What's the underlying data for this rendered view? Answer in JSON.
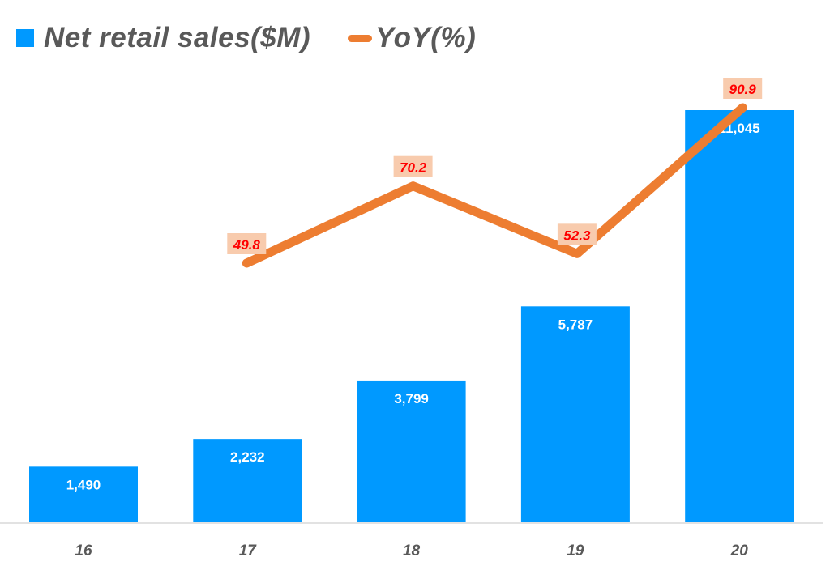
{
  "legend": {
    "bar_label": "Net retail sales($M)",
    "line_label": "YoY(%)"
  },
  "colors": {
    "bar": "#0099ff",
    "line": "#ed7d31",
    "yoy_label_bg": "#f8cbad",
    "yoy_label_text": "#ff0000",
    "axis_text": "#595959"
  },
  "chart_data": {
    "type": "bar",
    "title": "",
    "xlabel": "",
    "ylabel": "",
    "categories": [
      "16",
      "17",
      "18",
      "19",
      "20"
    ],
    "series": [
      {
        "name": "Net retail sales($M)",
        "type": "bar",
        "values": [
          1490,
          2232,
          3799,
          5787,
          11045
        ],
        "labels": [
          "1,490",
          "2,232",
          "3,799",
          "5,787",
          "11,045"
        ]
      },
      {
        "name": "YoY(%)",
        "type": "line",
        "values": [
          null,
          49.8,
          70.2,
          52.3,
          90.9
        ],
        "labels": [
          "",
          "49.8",
          "70.2",
          "52.3",
          "90.9"
        ]
      }
    ],
    "legend_position": "top-left",
    "grid": false
  }
}
